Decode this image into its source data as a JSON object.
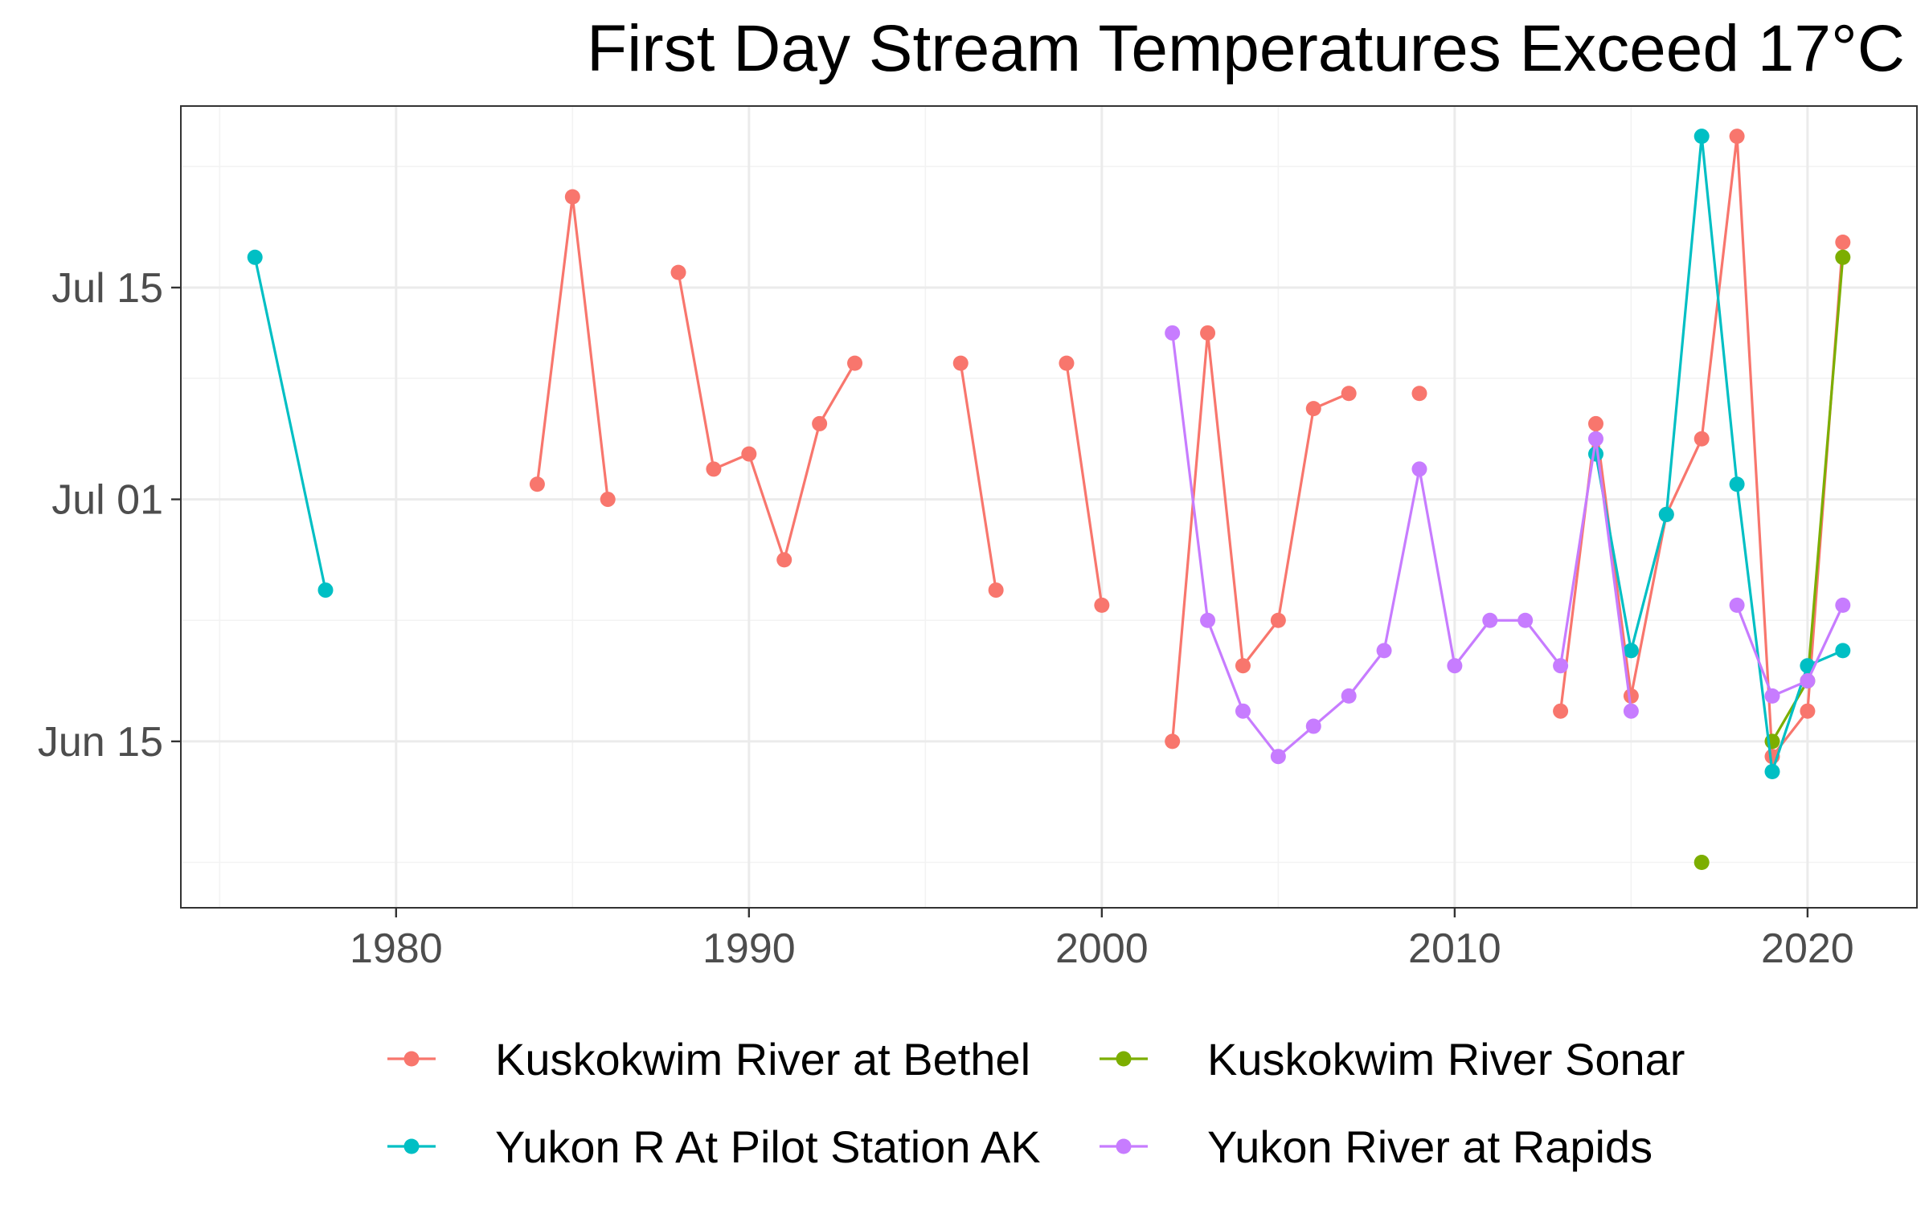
{
  "chart_data": {
    "type": "line",
    "title": "First Day Stream Temperatures Exceed 17°C",
    "xlabel": "",
    "ylabel": "",
    "xlim": [
      1973.9,
      2023.1
    ],
    "ylim": [
      "2024-06-04",
      "2024-07-27"
    ],
    "x_ticks": [
      {
        "value": 1980,
        "label": "1980"
      },
      {
        "value": 1990,
        "label": "1990"
      },
      {
        "value": 2000,
        "label": "2000"
      },
      {
        "value": 2010,
        "label": "2010"
      },
      {
        "value": 2020,
        "label": "2020"
      }
    ],
    "y_ticks": [
      {
        "value": "2024-06-15",
        "label": "Jun 15"
      },
      {
        "value": "2024-07-01",
        "label": "Jul 01"
      },
      {
        "value": "2024-07-15",
        "label": "Jul 15"
      }
    ],
    "grid": true,
    "legend": {
      "position": "bottom",
      "columns": 2
    },
    "series": [
      {
        "name": "Kuskokwim River at Bethel",
        "color": "#F8766D",
        "segments": [
          [
            {
              "x": 1984,
              "y": "2024-07-02"
            },
            {
              "x": 1985,
              "y": "2024-07-21"
            },
            {
              "x": 1986,
              "y": "2024-07-01"
            }
          ],
          [
            {
              "x": 1988,
              "y": "2024-07-16"
            },
            {
              "x": 1989,
              "y": "2024-07-03"
            },
            {
              "x": 1990,
              "y": "2024-07-04"
            },
            {
              "x": 1991,
              "y": "2024-06-27"
            },
            {
              "x": 1992,
              "y": "2024-07-06"
            },
            {
              "x": 1993,
              "y": "2024-07-10"
            }
          ],
          [
            {
              "x": 1996,
              "y": "2024-07-10"
            },
            {
              "x": 1997,
              "y": "2024-06-25"
            }
          ],
          [
            {
              "x": 1999,
              "y": "2024-07-10"
            },
            {
              "x": 2000,
              "y": "2024-06-24"
            }
          ],
          [
            {
              "x": 2002,
              "y": "2024-06-15"
            },
            {
              "x": 2003,
              "y": "2024-07-12"
            },
            {
              "x": 2004,
              "y": "2024-06-20"
            },
            {
              "x": 2005,
              "y": "2024-06-23"
            },
            {
              "x": 2006,
              "y": "2024-07-07"
            },
            {
              "x": 2007,
              "y": "2024-07-08"
            }
          ],
          [
            {
              "x": 2009,
              "y": "2024-07-08"
            }
          ],
          [
            {
              "x": 2013,
              "y": "2024-06-17"
            },
            {
              "x": 2014,
              "y": "2024-07-06"
            },
            {
              "x": 2015,
              "y": "2024-06-18"
            },
            {
              "x": 2016,
              "y": "2024-06-30"
            },
            {
              "x": 2017,
              "y": "2024-07-05"
            },
            {
              "x": 2018,
              "y": "2024-07-25"
            },
            {
              "x": 2019,
              "y": "2024-06-14"
            },
            {
              "x": 2020,
              "y": "2024-06-17"
            },
            {
              "x": 2021,
              "y": "2024-07-18"
            }
          ]
        ]
      },
      {
        "name": "Kuskokwim River Sonar",
        "color": "#7CAE00",
        "segments": [
          [
            {
              "x": 2017,
              "y": "2024-06-07"
            }
          ],
          [
            {
              "x": 2019,
              "y": "2024-06-15"
            },
            {
              "x": 2020,
              "y": "2024-06-19"
            },
            {
              "x": 2021,
              "y": "2024-07-17"
            }
          ]
        ]
      },
      {
        "name": "Yukon R At Pilot Station AK",
        "color": "#00BFC4",
        "segments": [
          [
            {
              "x": 1976,
              "y": "2024-07-17"
            },
            {
              "x": 1978,
              "y": "2024-06-25"
            }
          ],
          [
            {
              "x": 2014,
              "y": "2024-07-04"
            },
            {
              "x": 2015,
              "y": "2024-06-21"
            },
            {
              "x": 2016,
              "y": "2024-06-30"
            },
            {
              "x": 2017,
              "y": "2024-07-25"
            },
            {
              "x": 2018,
              "y": "2024-07-02"
            },
            {
              "x": 2019,
              "y": "2024-06-13"
            },
            {
              "x": 2020,
              "y": "2024-06-20"
            },
            {
              "x": 2021,
              "y": "2024-06-21"
            }
          ]
        ]
      },
      {
        "name": "Yukon River at Rapids",
        "color": "#C77CFF",
        "segments": [
          [
            {
              "x": 2002,
              "y": "2024-07-12"
            },
            {
              "x": 2003,
              "y": "2024-06-23"
            },
            {
              "x": 2004,
              "y": "2024-06-17"
            },
            {
              "x": 2005,
              "y": "2024-06-14"
            },
            {
              "x": 2006,
              "y": "2024-06-16"
            },
            {
              "x": 2007,
              "y": "2024-06-18"
            },
            {
              "x": 2008,
              "y": "2024-06-21"
            },
            {
              "x": 2009,
              "y": "2024-07-03"
            },
            {
              "x": 2010,
              "y": "2024-06-20"
            },
            {
              "x": 2011,
              "y": "2024-06-23"
            },
            {
              "x": 2012,
              "y": "2024-06-23"
            },
            {
              "x": 2013,
              "y": "2024-06-20"
            },
            {
              "x": 2014,
              "y": "2024-07-05"
            },
            {
              "x": 2015,
              "y": "2024-06-17"
            }
          ],
          [
            {
              "x": 2018,
              "y": "2024-06-24"
            },
            {
              "x": 2019,
              "y": "2024-06-18"
            },
            {
              "x": 2020,
              "y": "2024-06-19"
            },
            {
              "x": 2021,
              "y": "2024-06-24"
            }
          ]
        ]
      }
    ]
  }
}
